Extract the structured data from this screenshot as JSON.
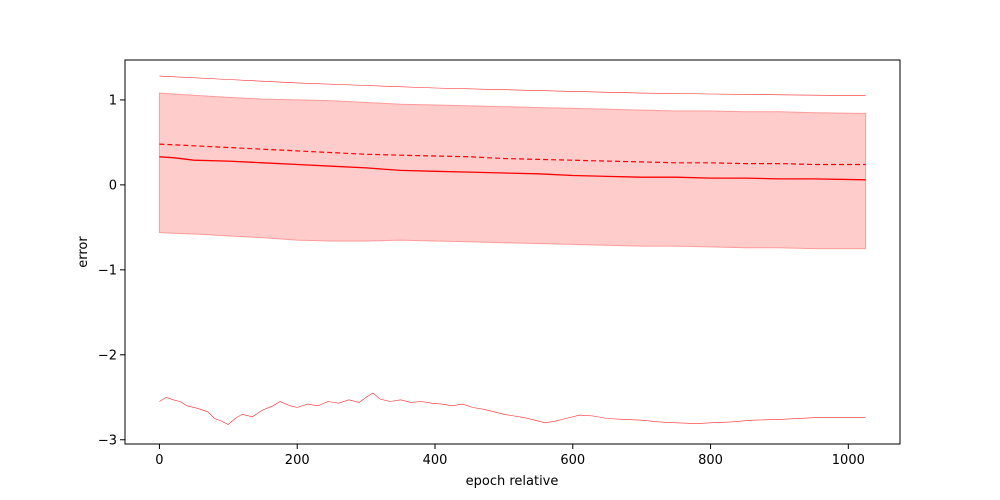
{
  "chart_data": {
    "type": "line",
    "title": "",
    "xlabel": "epoch relative",
    "ylabel": "error",
    "xlim": [
      -50,
      1075
    ],
    "ylim": [
      -3.05,
      1.47
    ],
    "x_ticks": [
      0,
      200,
      400,
      600,
      800,
      1000
    ],
    "x_tick_labels": [
      "0",
      "200",
      "400",
      "600",
      "800",
      "1000"
    ],
    "y_ticks": [
      1,
      0,
      -1,
      -2,
      -3
    ],
    "y_tick_labels": [
      "1",
      "0",
      "−1",
      "−2",
      "−3"
    ],
    "grid": false,
    "legend": "none",
    "colors": {
      "series": "#ff0000",
      "band_fill": "#ffcccc",
      "band_edge": "#ff9a9a",
      "axis": "#000000"
    },
    "band": {
      "x": [
        0,
        20,
        60,
        100,
        150,
        200,
        250,
        300,
        350,
        400,
        450,
        500,
        550,
        600,
        650,
        700,
        750,
        800,
        850,
        900,
        950,
        1025
      ],
      "upper": [
        1.08,
        1.07,
        1.05,
        1.03,
        1.01,
        1.0,
        0.99,
        0.97,
        0.95,
        0.94,
        0.93,
        0.92,
        0.91,
        0.9,
        0.89,
        0.88,
        0.87,
        0.87,
        0.86,
        0.86,
        0.85,
        0.84
      ],
      "lower": [
        -0.56,
        -0.57,
        -0.58,
        -0.6,
        -0.62,
        -0.65,
        -0.66,
        -0.66,
        -0.65,
        -0.66,
        -0.67,
        -0.68,
        -0.69,
        -0.7,
        -0.71,
        -0.72,
        -0.72,
        -0.73,
        -0.74,
        -0.74,
        -0.75,
        -0.75
      ]
    },
    "series": [
      {
        "style": "solid",
        "x": [
          0,
          20,
          50,
          100,
          150,
          200,
          250,
          300,
          350,
          400,
          450,
          500,
          550,
          600,
          650,
          700,
          750,
          800,
          850,
          900,
          950,
          1025
        ],
        "values": [
          0.33,
          0.32,
          0.29,
          0.28,
          0.26,
          0.24,
          0.22,
          0.2,
          0.17,
          0.16,
          0.15,
          0.14,
          0.13,
          0.11,
          0.1,
          0.09,
          0.09,
          0.08,
          0.08,
          0.07,
          0.07,
          0.06
        ]
      },
      {
        "style": "dashed",
        "x": [
          0,
          50,
          100,
          150,
          200,
          250,
          300,
          350,
          400,
          450,
          500,
          550,
          600,
          650,
          700,
          750,
          800,
          850,
          900,
          950,
          1025
        ],
        "values": [
          0.48,
          0.46,
          0.44,
          0.42,
          0.4,
          0.38,
          0.36,
          0.35,
          0.34,
          0.33,
          0.31,
          0.3,
          0.29,
          0.28,
          0.27,
          0.26,
          0.26,
          0.25,
          0.25,
          0.24,
          0.24
        ]
      },
      {
        "style": "thin",
        "x": [
          0,
          100,
          200,
          300,
          400,
          500,
          600,
          700,
          800,
          900,
          1025
        ],
        "values": [
          1.28,
          1.24,
          1.2,
          1.17,
          1.14,
          1.12,
          1.1,
          1.08,
          1.07,
          1.06,
          1.05
        ]
      },
      {
        "style": "thin",
        "x": [
          0,
          10,
          20,
          30,
          40,
          55,
          70,
          80,
          90,
          100,
          110,
          120,
          135,
          150,
          165,
          175,
          190,
          200,
          215,
          230,
          245,
          260,
          275,
          290,
          300,
          310,
          320,
          335,
          350,
          365,
          380,
          395,
          410,
          425,
          440,
          455,
          470,
          485,
          500,
          515,
          530,
          545,
          560,
          575,
          590,
          610,
          630,
          650,
          675,
          700,
          725,
          750,
          780,
          800,
          830,
          860,
          900,
          950,
          1025
        ],
        "values": [
          -2.55,
          -2.5,
          -2.53,
          -2.55,
          -2.6,
          -2.63,
          -2.67,
          -2.75,
          -2.78,
          -2.82,
          -2.75,
          -2.7,
          -2.73,
          -2.65,
          -2.6,
          -2.55,
          -2.6,
          -2.62,
          -2.58,
          -2.6,
          -2.55,
          -2.57,
          -2.53,
          -2.56,
          -2.5,
          -2.45,
          -2.52,
          -2.55,
          -2.53,
          -2.56,
          -2.55,
          -2.57,
          -2.58,
          -2.6,
          -2.58,
          -2.62,
          -2.64,
          -2.67,
          -2.7,
          -2.72,
          -2.74,
          -2.77,
          -2.8,
          -2.78,
          -2.75,
          -2.71,
          -2.72,
          -2.75,
          -2.76,
          -2.77,
          -2.79,
          -2.8,
          -2.81,
          -2.8,
          -2.79,
          -2.77,
          -2.76,
          -2.74,
          -2.74
        ]
      }
    ]
  }
}
